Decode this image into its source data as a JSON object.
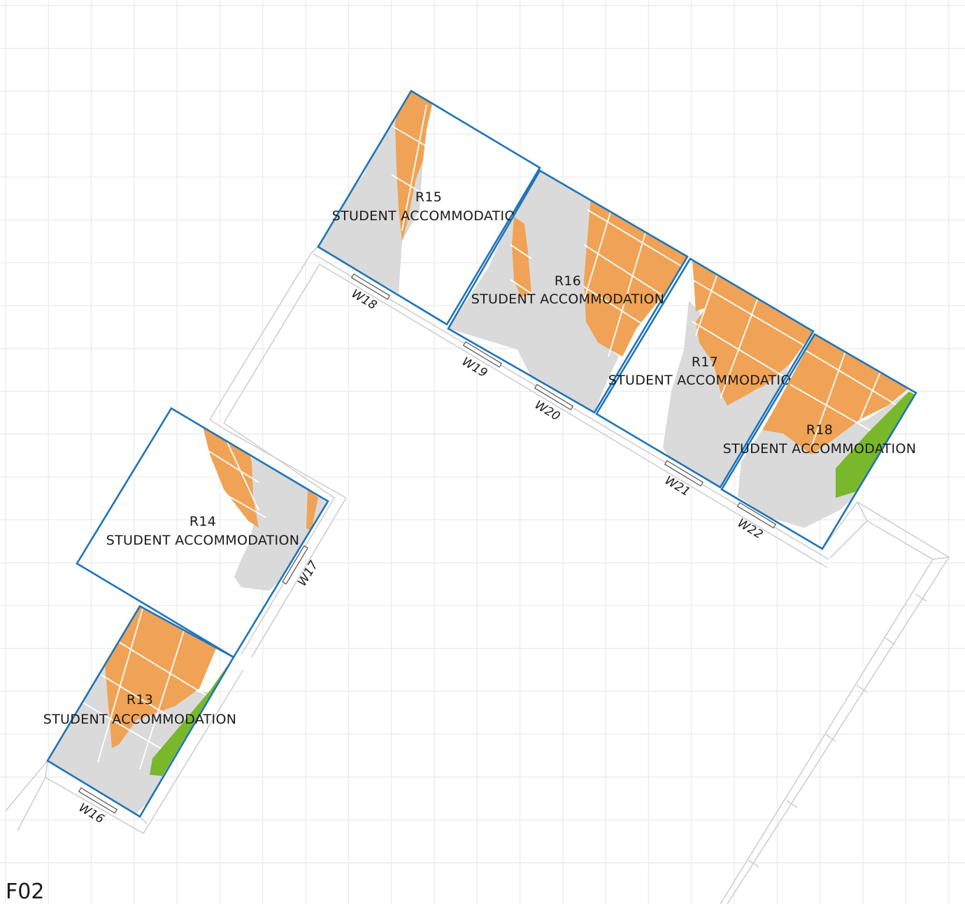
{
  "floor": "F02",
  "rooms": [
    {
      "id": "R13",
      "use": "STUDENT ACCOMMODATION"
    },
    {
      "id": "R14",
      "use": "STUDENT ACCOMMODATION"
    },
    {
      "id": "R15",
      "use": "STUDENT ACCOMMODATION"
    },
    {
      "id": "R16",
      "use": "STUDENT ACCOMMODATION"
    },
    {
      "id": "R17",
      "use": "STUDENT ACCOMMODATION"
    },
    {
      "id": "R18",
      "use": "STUDENT ACCOMMODATION"
    }
  ],
  "windows": [
    "W16",
    "W17",
    "W18",
    "W19",
    "W20",
    "W21",
    "W22"
  ],
  "colors": {
    "room_outline": "#1f74b8",
    "zone_orange": "#f0a356",
    "zone_green": "#78b82a",
    "zone_grey": "#dadada",
    "walls": "#cfcfcf",
    "grid": "#ececec"
  }
}
